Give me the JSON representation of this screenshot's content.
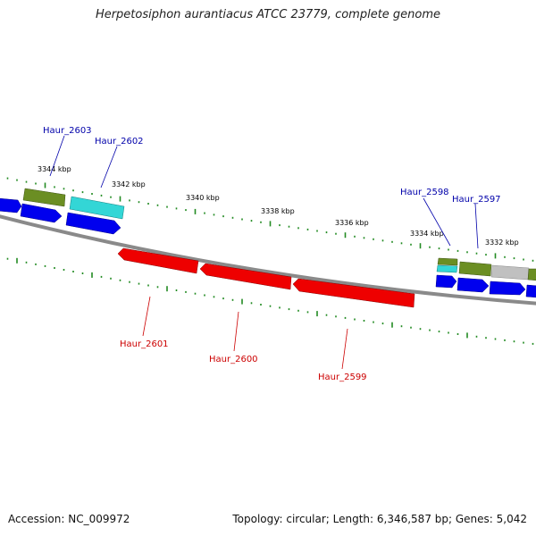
{
  "title": "Herpetosiphon aurantiacus ATCC 23779, complete genome",
  "accession_text": "Accession: NC_009972",
  "summary_text": "Topology: circular; Length: 6,346,587 bp; Genes: 5,042",
  "colors": {
    "forward_label": "#0000aa",
    "reverse_label": "#cc0000",
    "gene_blue": "#0000ee",
    "gene_red": "#ee0000",
    "gene_cyan": "#33d6d6",
    "gene_olive": "#6b8e23",
    "gene_gray": "#c0c0c0",
    "backbone": "#888888",
    "tick": "#228b22"
  },
  "ruler_labels": [
    "3344 kbp",
    "3342 kbp",
    "3340 kbp",
    "3338 kbp",
    "3336 kbp",
    "3334 kbp",
    "3332 kbp"
  ],
  "forward_gene_labels": [
    "Haur_2603",
    "Haur_2602",
    "Haur_2598",
    "Haur_2597"
  ],
  "reverse_gene_labels": [
    "Haur_2601",
    "Haur_2600",
    "Haur_2599"
  ]
}
